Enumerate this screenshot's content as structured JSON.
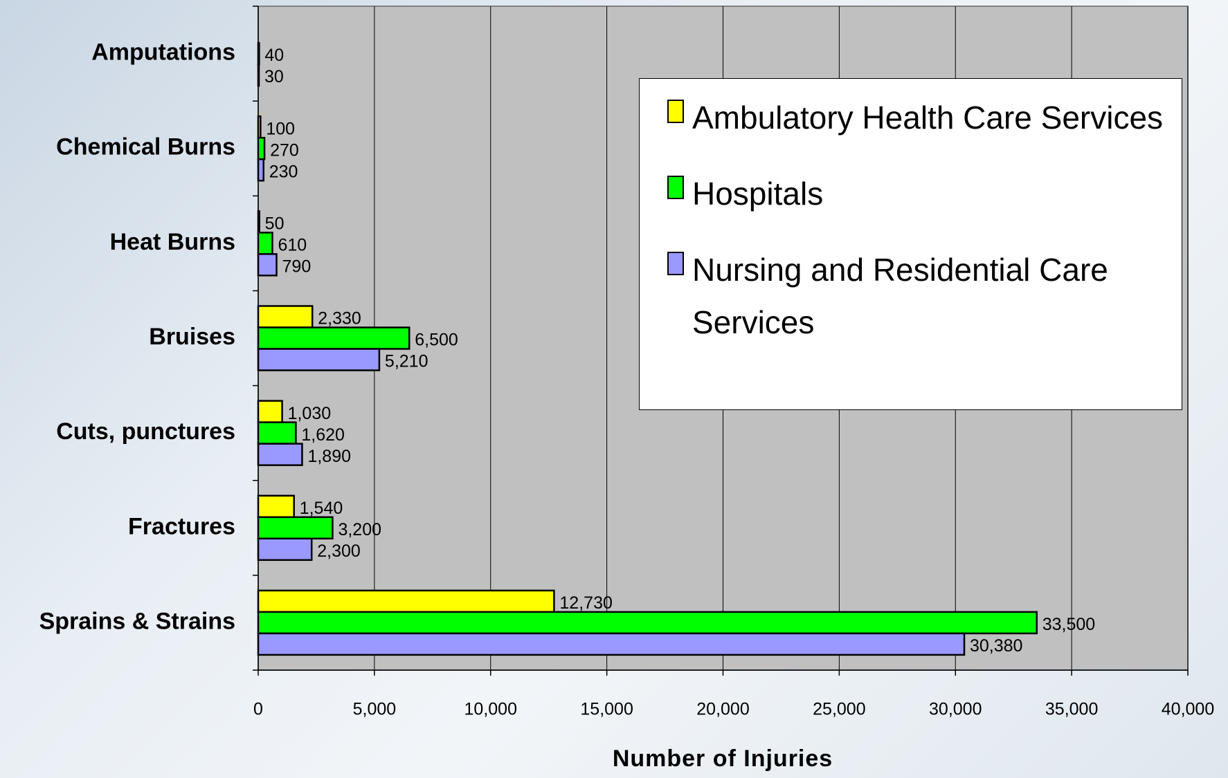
{
  "chart_data": {
    "type": "bar",
    "orientation": "horizontal",
    "x_label": "Number of Injuries",
    "categories": [
      "Amputations",
      "Chemical Burns",
      "Heat Burns",
      "Bruises",
      "Cuts, punctures",
      "Fractures",
      "Sprains & Strains"
    ],
    "series": [
      {
        "name": "Ambulatory Health Care Services",
        "color": "#ffff00",
        "values": [
          null,
          100,
          50,
          2330,
          1030,
          1540,
          12730
        ],
        "value_labels": [
          null,
          "100",
          "50",
          "2,330",
          "1,030",
          "1,540",
          "12,730"
        ]
      },
      {
        "name": "Hospitals",
        "color": "#00ff00",
        "values": [
          40,
          270,
          610,
          6500,
          1620,
          3200,
          33500
        ],
        "value_labels": [
          "40",
          "270",
          "610",
          "6,500",
          "1,620",
          "3,200",
          "33,500"
        ]
      },
      {
        "name": "Nursing and Residential Care Services",
        "color": "#9999ff",
        "values": [
          30,
          230,
          790,
          5210,
          1890,
          2300,
          30380
        ],
        "value_labels": [
          "30",
          "230",
          "790",
          "5,210",
          "1,890",
          "2,300",
          "30,380"
        ]
      }
    ],
    "xlim": [
      0,
      40000
    ],
    "xticks": [
      0,
      {
        "value": 5000,
        "label": "5,000"
      },
      {
        "value": 10000,
        "label": "10,000"
      },
      {
        "value": 15000,
        "label": "15,000"
      },
      {
        "value": 20000,
        "label": "20,000"
      },
      {
        "value": 25000,
        "label": "25,000"
      },
      {
        "value": 30000,
        "label": "30,000"
      },
      {
        "value": 35000,
        "label": "35,000"
      },
      {
        "value": 40000,
        "label": "40,000"
      }
    ],
    "grid": true,
    "plot_background": "#c0c0c0",
    "legend_position": "upper right"
  }
}
